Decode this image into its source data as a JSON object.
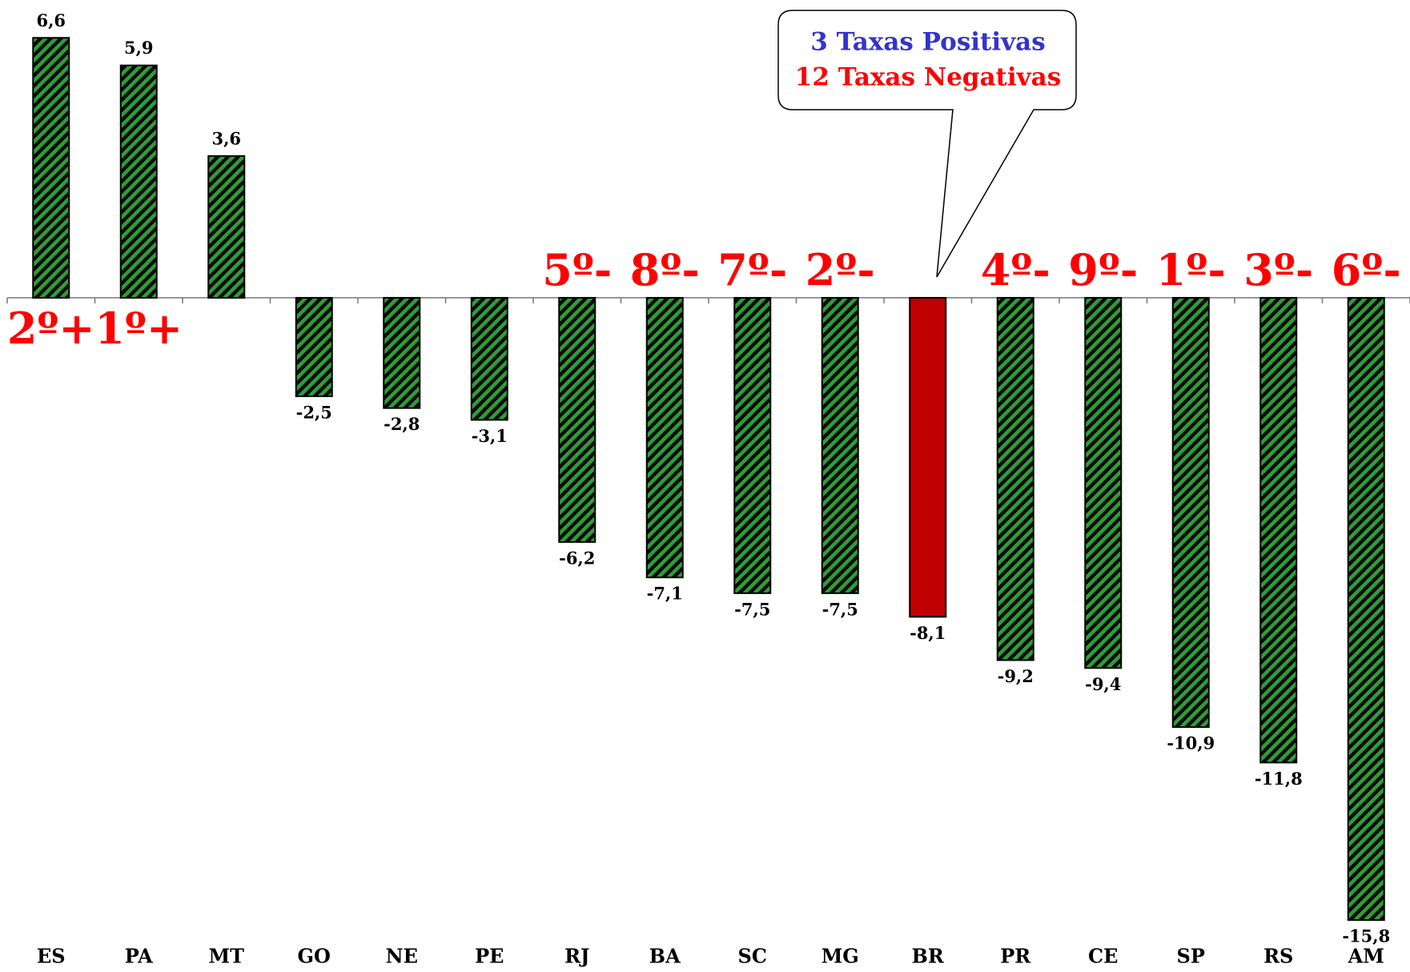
{
  "chart_data": {
    "type": "bar",
    "categories": [
      "ES",
      "PA",
      "MT",
      "GO",
      "NE",
      "PE",
      "RJ",
      "BA",
      "SC",
      "MG",
      "BR",
      "PR",
      "CE",
      "SP",
      "RS",
      "AM"
    ],
    "values": [
      6.6,
      5.9,
      3.6,
      -2.5,
      -2.8,
      -3.1,
      -6.2,
      -7.1,
      -7.5,
      -7.5,
      -8.1,
      -9.2,
      -9.4,
      -10.9,
      -11.8,
      -15.8
    ],
    "value_labels": [
      "6,6",
      "5,9",
      "3,6",
      "-2,5",
      "-2,8",
      "-3,1",
      "-6,2",
      "-7,1",
      "-7,5",
      "-7,5",
      "-8,1",
      "-9,2",
      "-9,4",
      "-10,9",
      "-11,8",
      "-15,8"
    ],
    "rank_labels": [
      "2º+",
      "1º+",
      null,
      null,
      null,
      null,
      "5º-",
      "8º-",
      "7º-",
      "2º-",
      null,
      "4º-",
      "9º-",
      "1º-",
      "3º-",
      "6º-"
    ],
    "colors": [
      "#2e9e36",
      "#2e9e36",
      "#2e9e36",
      "#2e9e36",
      "#2e9e36",
      "#2e9e36",
      "#2e9e36",
      "#2e9e36",
      "#2e9e36",
      "#2e9e36",
      "#c00000",
      "#2e9e36",
      "#2e9e36",
      "#2e9e36",
      "#2e9e36",
      "#2e9e36"
    ],
    "patterns": [
      "hatch",
      "hatch",
      "hatch",
      "hatch",
      "hatch",
      "hatch",
      "hatch",
      "hatch",
      "hatch",
      "hatch",
      "solid",
      "hatch",
      "hatch",
      "hatch",
      "hatch",
      "hatch"
    ],
    "ylim": [
      -16,
      7.5
    ],
    "callout": {
      "lines": [
        {
          "text": "3 Taxas Positivas",
          "color": "#3333cc"
        },
        {
          "text": "12 Taxas Negativas",
          "color": "#ff0000"
        }
      ]
    }
  }
}
